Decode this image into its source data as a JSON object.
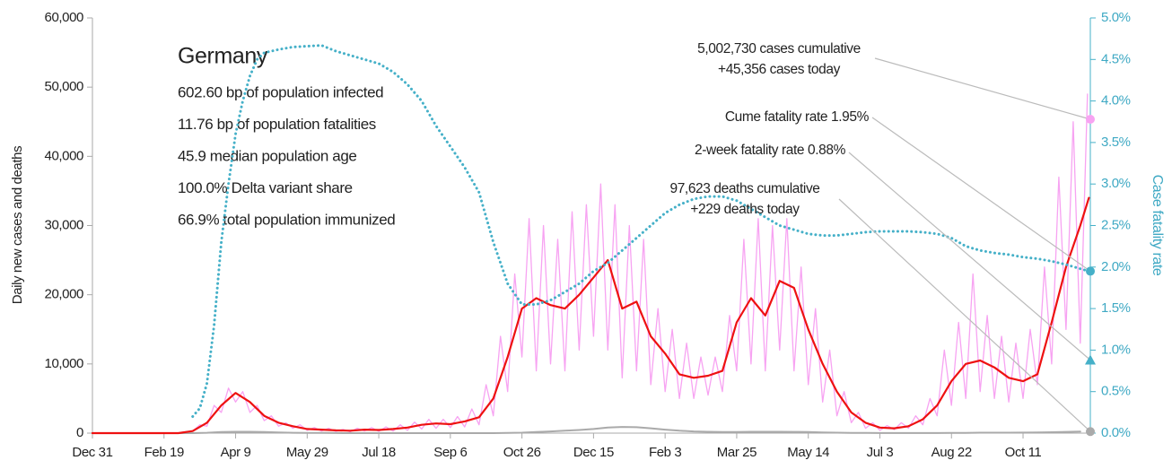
{
  "chart_data": {
    "type": "line",
    "ylabel": "Daily new cases and deaths",
    "y2label": "Case fatality rate",
    "xlim": [
      0,
      697
    ],
    "xticks": [
      {
        "value": 0,
        "label": "Dec 31"
      },
      {
        "value": 50,
        "label": "Feb 19"
      },
      {
        "value": 100,
        "label": "Apr 9"
      },
      {
        "value": 150,
        "label": "May 29"
      },
      {
        "value": 200,
        "label": "Jul 18"
      },
      {
        "value": 250,
        "label": "Sep 6"
      },
      {
        "value": 300,
        "label": "Oct 26"
      },
      {
        "value": 350,
        "label": "Dec 15"
      },
      {
        "value": 400,
        "label": "Feb 3"
      },
      {
        "value": 450,
        "label": "Mar 25"
      },
      {
        "value": 500,
        "label": "May 14"
      },
      {
        "value": 550,
        "label": "Jul 3"
      },
      {
        "value": 600,
        "label": "Aug 22"
      },
      {
        "value": 650,
        "label": "Oct 11"
      }
    ],
    "ylim": [
      0,
      60000
    ],
    "yticks": [
      0,
      {
        "value": 10000,
        "label": "10,000"
      },
      {
        "value": 20000,
        "label": "20,000"
      },
      {
        "value": 30000,
        "label": "30,000"
      },
      {
        "value": 40000,
        "label": "40,000"
      },
      {
        "value": 50000,
        "label": "50,000"
      },
      {
        "value": 60000,
        "label": "60,000"
      }
    ],
    "y2lim": [
      0,
      5
    ],
    "y2ticks": [
      {
        "value": 0,
        "label": "0.0%"
      },
      {
        "value": 0.5,
        "label": "0.5%"
      },
      {
        "value": 1,
        "label": "1.0%"
      },
      {
        "value": 1.5,
        "label": "1.5%"
      },
      {
        "value": 2,
        "label": "2.0%"
      },
      {
        "value": 2.5,
        "label": "2.5%"
      },
      {
        "value": 3,
        "label": "3.0%"
      },
      {
        "value": 3.5,
        "label": "3.5%"
      },
      {
        "value": 4,
        "label": "4.0%"
      },
      {
        "value": 4.5,
        "label": "4.5%"
      },
      {
        "value": 5,
        "label": "5.0%"
      }
    ],
    "series": [
      {
        "color": "#f7a3f2",
        "width": 1.3,
        "dotted": false,
        "x": [
          0,
          5,
          10,
          15,
          20,
          25,
          30,
          35,
          40,
          45,
          50,
          55,
          60,
          65,
          70,
          75,
          80,
          85,
          90,
          95,
          100,
          105,
          110,
          115,
          120,
          125,
          130,
          135,
          140,
          145,
          150,
          155,
          160,
          165,
          170,
          175,
          180,
          185,
          190,
          195,
          200,
          205,
          210,
          215,
          220,
          225,
          230,
          235,
          240,
          245,
          250,
          255,
          260,
          265,
          270,
          275,
          280,
          285,
          290,
          295,
          300,
          305,
          310,
          315,
          320,
          325,
          330,
          335,
          340,
          345,
          350,
          355,
          360,
          365,
          370,
          375,
          380,
          385,
          390,
          395,
          400,
          405,
          410,
          415,
          420,
          425,
          430,
          435,
          440,
          445,
          450,
          455,
          460,
          465,
          470,
          475,
          480,
          485,
          490,
          495,
          500,
          505,
          510,
          515,
          520,
          525,
          530,
          535,
          540,
          545,
          550,
          555,
          560,
          565,
          570,
          575,
          580,
          585,
          590,
          595,
          600,
          605,
          610,
          615,
          620,
          625,
          630,
          635,
          640,
          645,
          650,
          655,
          660,
          665,
          670,
          675,
          680,
          685,
          690,
          695
        ],
        "values": [
          0,
          0,
          0,
          0,
          0,
          0,
          0,
          0,
          0,
          0,
          0,
          0,
          50,
          200,
          300,
          1200,
          1000,
          4000,
          3000,
          6500,
          4500,
          6000,
          3000,
          4000,
          1800,
          2500,
          1000,
          1500,
          700,
          1200,
          400,
          800,
          300,
          700,
          250,
          550,
          200,
          700,
          300,
          800,
          250,
          900,
          300,
          1200,
          400,
          1600,
          600,
          2000,
          700,
          2000,
          800,
          2400,
          900,
          3500,
          1200,
          7000,
          2500,
          14000,
          6000,
          23000,
          11000,
          31000,
          9000,
          30000,
          10000,
          28000,
          9000,
          32000,
          12000,
          33000,
          14000,
          36000,
          12000,
          33000,
          8000,
          30000,
          9000,
          28000,
          7000,
          18000,
          6000,
          15000,
          5000,
          13000,
          5000,
          11000,
          5500,
          11000,
          6000,
          17000,
          9000,
          28000,
          10000,
          31000,
          9000,
          30000,
          12000,
          31000,
          9000,
          24000,
          7000,
          18000,
          4500,
          12000,
          2500,
          6000,
          1500,
          3000,
          700,
          1500,
          400,
          1100,
          500,
          1500,
          700,
          2500,
          1200,
          5000,
          2500,
          12000,
          4000,
          16000,
          5000,
          23000,
          6000,
          17000,
          5000,
          14000,
          4500,
          13000,
          5000,
          15000,
          7000,
          24000,
          10000,
          37000,
          15000,
          45000,
          13000,
          49000
        ]
      },
      {
        "color": "#aaaaaa",
        "width": 2,
        "dotted": false,
        "x": [
          0,
          10,
          20,
          30,
          40,
          50,
          60,
          70,
          80,
          90,
          100,
          110,
          120,
          130,
          140,
          150,
          160,
          170,
          180,
          190,
          200,
          210,
          220,
          230,
          240,
          250,
          260,
          270,
          280,
          290,
          300,
          310,
          320,
          330,
          340,
          350,
          360,
          370,
          380,
          390,
          400,
          410,
          420,
          430,
          440,
          450,
          460,
          470,
          480,
          490,
          500,
          510,
          520,
          530,
          540,
          550,
          560,
          570,
          580,
          590,
          600,
          610,
          620,
          630,
          640,
          650,
          660,
          670,
          680,
          690
        ],
        "values": [
          0,
          0,
          0,
          0,
          0,
          0,
          0,
          5,
          50,
          150,
          200,
          200,
          150,
          100,
          50,
          30,
          20,
          10,
          5,
          5,
          5,
          5,
          5,
          5,
          5,
          5,
          5,
          5,
          5,
          30,
          60,
          150,
          250,
          350,
          450,
          600,
          800,
          900,
          850,
          700,
          500,
          350,
          250,
          200,
          150,
          150,
          200,
          200,
          200,
          180,
          150,
          100,
          60,
          30,
          20,
          15,
          10,
          10,
          10,
          15,
          25,
          40,
          60,
          70,
          70,
          80,
          100,
          130,
          180,
          220
        ]
      },
      {
        "color": "#ee1111",
        "width": 2.2,
        "dotted": false,
        "x": [
          0,
          10,
          20,
          30,
          40,
          50,
          60,
          70,
          80,
          90,
          100,
          110,
          120,
          130,
          140,
          150,
          160,
          170,
          180,
          190,
          200,
          210,
          220,
          230,
          240,
          250,
          260,
          270,
          280,
          290,
          300,
          310,
          320,
          330,
          340,
          350,
          360,
          370,
          380,
          390,
          400,
          410,
          420,
          430,
          440,
          450,
          460,
          470,
          480,
          490,
          500,
          510,
          520,
          530,
          540,
          550,
          560,
          570,
          580,
          590,
          600,
          610,
          620,
          630,
          640,
          650,
          660,
          670,
          680,
          690,
          696
        ],
        "values": [
          0,
          0,
          0,
          0,
          0,
          0,
          0,
          300,
          1500,
          4000,
          5800,
          4500,
          2500,
          1500,
          1000,
          600,
          500,
          400,
          350,
          500,
          450,
          600,
          800,
          1200,
          1400,
          1300,
          1700,
          2300,
          5000,
          11000,
          18000,
          19500,
          18500,
          18000,
          20000,
          22500,
          25000,
          18000,
          19000,
          14000,
          11500,
          8500,
          8000,
          8300,
          9000,
          16000,
          19500,
          17000,
          22000,
          21000,
          15000,
          10000,
          6000,
          3000,
          1500,
          800,
          700,
          1000,
          2000,
          4000,
          7500,
          10000,
          10500,
          9500,
          8000,
          7500,
          8500,
          16000,
          24000,
          30000,
          34000
        ]
      },
      {
        "color": "#45b0c8",
        "width": 3,
        "dotted": true,
        "axis": "y2",
        "x": [
          70,
          75,
          80,
          85,
          90,
          95,
          100,
          105,
          110,
          115,
          120,
          130,
          140,
          150,
          160,
          170,
          180,
          190,
          200,
          210,
          220,
          230,
          240,
          250,
          260,
          270,
          280,
          290,
          300,
          310,
          320,
          330,
          340,
          350,
          360,
          370,
          380,
          390,
          400,
          410,
          420,
          430,
          440,
          450,
          460,
          470,
          480,
          490,
          500,
          510,
          520,
          530,
          540,
          550,
          560,
          570,
          580,
          590,
          600,
          610,
          620,
          630,
          640,
          650,
          660,
          670,
          680,
          690,
          696
        ],
        "values": [
          0.2,
          0.3,
          0.6,
          1.3,
          2.3,
          3.0,
          3.6,
          4.0,
          4.3,
          4.5,
          4.58,
          4.62,
          4.65,
          4.66,
          4.67,
          4.6,
          4.55,
          4.5,
          4.45,
          4.35,
          4.2,
          4.0,
          3.7,
          3.45,
          3.2,
          2.9,
          2.3,
          1.8,
          1.55,
          1.55,
          1.6,
          1.7,
          1.8,
          1.95,
          2.05,
          2.2,
          2.35,
          2.5,
          2.65,
          2.75,
          2.82,
          2.85,
          2.85,
          2.8,
          2.7,
          2.6,
          2.5,
          2.45,
          2.4,
          2.38,
          2.38,
          2.4,
          2.42,
          2.43,
          2.43,
          2.43,
          2.42,
          2.4,
          2.35,
          2.25,
          2.2,
          2.17,
          2.15,
          2.12,
          2.1,
          2.07,
          2.03,
          1.98,
          1.95
        ]
      }
    ],
    "markers": [
      {
        "value": 45356,
        "color": "#f7a3f2",
        "shape": "circle"
      },
      {
        "value": 1.95,
        "axis": "y2",
        "color": "#45b0c8",
        "shape": "circle"
      },
      {
        "value": 0.88,
        "axis": "y2",
        "color": "#45b0c8",
        "shape": "triangle"
      },
      {
        "value": 229,
        "color": "#aaaaaa",
        "shape": "circle"
      }
    ],
    "annotations": [
      {
        "lines": [
          "5,002,730 cases cumulative",
          "+45,356 cases today"
        ]
      },
      {
        "lines": [
          "Cume fatality rate 1.95%"
        ]
      },
      {
        "lines": [
          "2-week fatality rate 0.88%"
        ]
      },
      {
        "lines": [
          "97,623 deaths cumulative",
          "+229 deaths today"
        ]
      }
    ],
    "info": {
      "title": "Germany",
      "lines": [
        "602.60 bp of population infected",
        "11.76 bp of population fatalities",
        "45.9 median population age",
        "100.0% Delta variant share",
        "66.9% total population immunized"
      ]
    }
  }
}
